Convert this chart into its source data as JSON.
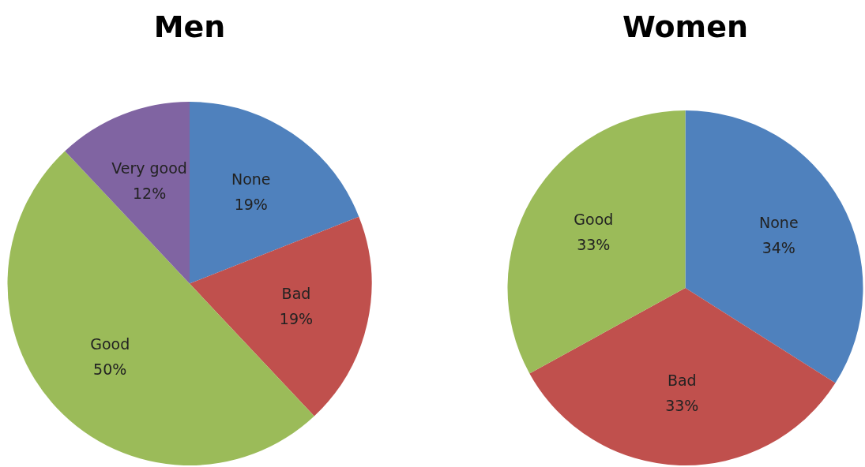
{
  "chart_data": [
    {
      "type": "pie",
      "title": "Men",
      "categories": [
        "None",
        "Bad",
        "Good",
        "Very good"
      ],
      "values": [
        19,
        19,
        50,
        12
      ],
      "colors": [
        "#4f81bd",
        "#c0504d",
        "#9bbb59",
        "#8064a2"
      ],
      "value_labels": [
        "19%",
        "19%",
        "50%",
        "12%"
      ],
      "legend": false
    },
    {
      "type": "pie",
      "title": "Women",
      "categories": [
        "None",
        "Bad",
        "Good"
      ],
      "values": [
        34,
        33,
        33
      ],
      "colors": [
        "#4f81bd",
        "#c0504d",
        "#9bbb59"
      ],
      "value_labels": [
        "34%",
        "33%",
        "33%"
      ],
      "legend": false
    }
  ]
}
